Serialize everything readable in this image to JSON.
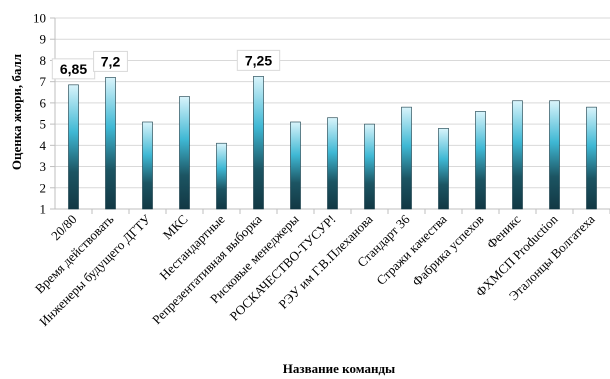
{
  "chart_data": {
    "type": "bar",
    "title": "",
    "xlabel": "Название команды",
    "ylabel": "Оценка жюри, балл",
    "ylim": [
      1,
      10
    ],
    "yticks": [
      "1",
      "2",
      "3",
      "4",
      "5",
      "6",
      "7",
      "8",
      "9",
      "10"
    ],
    "grid": true,
    "legend": "none",
    "categories": [
      "20/80",
      "Время действовать",
      "Инженеры будущего ДГТУ",
      "МКС",
      "Нестандартные",
      "Репрезентативная выборка",
      "Рисковые менеджеры",
      "РОСКАЧЕСТВО-ТУСУР!",
      "РЭУ им Г.В.Плеханова",
      "Стандарт 36",
      "Стражи качества",
      "Фабрика успехов",
      "Феникс",
      "ФХМСП Production",
      "Эталонцы Волгатеха"
    ],
    "series": [
      {
        "values": [
          6.85,
          7.2,
          5.1,
          6.3,
          4.1,
          7.25,
          5.1,
          5.3,
          5.0,
          5.8,
          4.8,
          5.6,
          6.1,
          6.1,
          5.8
        ]
      }
    ],
    "data_labels": [
      {
        "index": 0,
        "text": "6,85"
      },
      {
        "index": 1,
        "text": "7,2"
      },
      {
        "index": 5,
        "text": "7,25"
      }
    ],
    "colors": {
      "bar_top": "#d9f4fb",
      "bar_mid": "#3fb8d4",
      "bar_dark": "#1c5563",
      "bar_bottom": "#123844",
      "grid": "#d9d9d9",
      "axis": "#bfbfbf",
      "label_box": "#d9d9d9"
    }
  }
}
